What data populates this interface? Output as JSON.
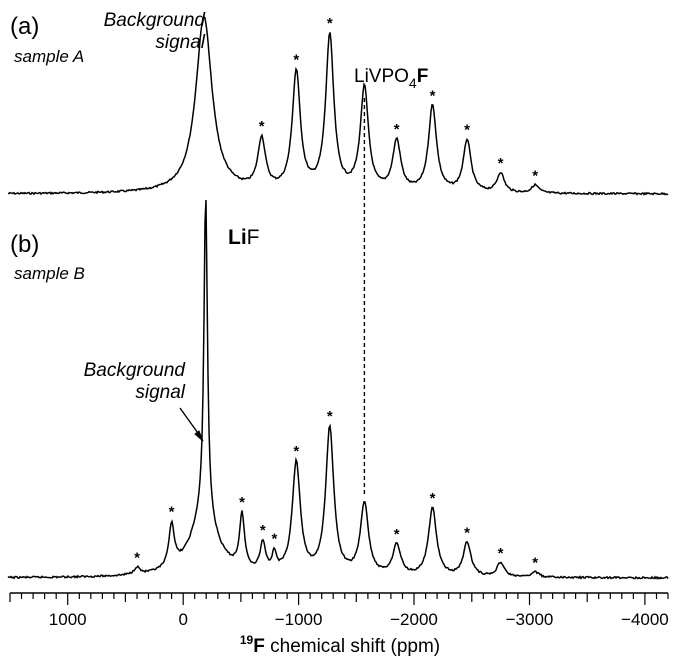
{
  "chart_data": {
    "type": "line",
    "xlabel_superscript": "19",
    "xlabel_nucleus": "F",
    "xlabel_rest": " chemical shift (ppm)",
    "xlim": [
      1500,
      -4200
    ],
    "x_tick_labels": [
      {
        "value": 1000,
        "label": "1000"
      },
      {
        "value": 0,
        "label": "0"
      },
      {
        "value": -1000,
        "label": "−1000"
      },
      {
        "value": -2000,
        "label": "−2000"
      },
      {
        "value": -3000,
        "label": "−3000"
      },
      {
        "value": -4000,
        "label": "−4000"
      }
    ],
    "minor_tick_step": 100,
    "reference_line_x": -1570,
    "asterisk": "*",
    "panels": [
      {
        "id": "a",
        "panel_label": "(a)",
        "sample_label": "sample A",
        "background_label_line1": "Background",
        "background_label_line2": "signal",
        "peak_label_main": "LiVPO",
        "peak_label_sub": "4",
        "peak_label_bold": "F",
        "peaks": [
          {
            "x": -180,
            "height": 0.98,
            "width": 85,
            "star": false
          },
          {
            "x": -680,
            "height": 0.28,
            "width": 40,
            "star": true
          },
          {
            "x": -980,
            "height": 0.66,
            "width": 42,
            "star": true
          },
          {
            "x": -1270,
            "height": 0.865,
            "width": 42,
            "star": true
          },
          {
            "x": -1570,
            "height": 0.575,
            "width": 42,
            "star": false
          },
          {
            "x": -1850,
            "height": 0.28,
            "width": 42,
            "star": true
          },
          {
            "x": -2160,
            "height": 0.48,
            "width": 42,
            "star": true
          },
          {
            "x": -2460,
            "height": 0.29,
            "width": 40,
            "star": true
          },
          {
            "x": -2750,
            "height": 0.11,
            "width": 38,
            "star": true
          },
          {
            "x": -3050,
            "height": 0.045,
            "width": 38,
            "star": true
          }
        ]
      },
      {
        "id": "b",
        "panel_label": "(b)",
        "sample_label": "sample B",
        "background_label_line1": "Background",
        "background_label_line2": "signal",
        "peak_label_li": "Li",
        "peak_label_f": "F",
        "peaks": [
          {
            "x": 400,
            "height": 0.02,
            "width": 30,
            "star": true
          },
          {
            "x": 100,
            "height": 0.12,
            "width": 28,
            "star": true
          },
          {
            "x": -195,
            "height": 0.9,
            "width": 18,
            "star": false
          },
          {
            "x": -180,
            "height": 0.17,
            "width": 140,
            "star": false
          },
          {
            "x": -510,
            "height": 0.15,
            "width": 26,
            "star": true
          },
          {
            "x": -690,
            "height": 0.08,
            "width": 28,
            "star": true
          },
          {
            "x": -790,
            "height": 0.05,
            "width": 22,
            "star": true
          },
          {
            "x": -980,
            "height": 0.31,
            "width": 42,
            "star": true
          },
          {
            "x": -1270,
            "height": 0.41,
            "width": 42,
            "star": true
          },
          {
            "x": -1570,
            "height": 0.2,
            "width": 42,
            "star": false
          },
          {
            "x": -1850,
            "height": 0.085,
            "width": 42,
            "star": true
          },
          {
            "x": -2160,
            "height": 0.19,
            "width": 42,
            "star": true
          },
          {
            "x": -2460,
            "height": 0.095,
            "width": 40,
            "star": true
          },
          {
            "x": -2750,
            "height": 0.04,
            "width": 38,
            "star": true
          },
          {
            "x": -3050,
            "height": 0.015,
            "width": 38,
            "star": true
          }
        ]
      }
    ]
  }
}
